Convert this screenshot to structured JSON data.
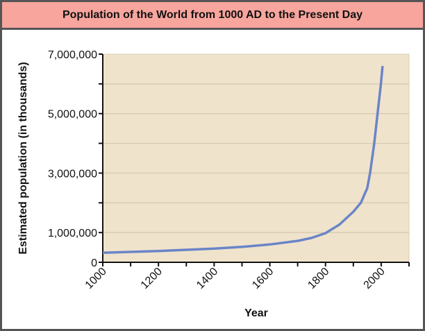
{
  "chart_data": {
    "type": "line",
    "title": "Population of the World from 1000 AD to the Present Day",
    "xlabel": "Year",
    "ylabel": "Estimated population (in thousands)",
    "xlim": [
      1000,
      2100
    ],
    "ylim": [
      0,
      7000000
    ],
    "x_ticks": [
      1000,
      1100,
      1200,
      1300,
      1400,
      1500,
      1600,
      1700,
      1800,
      1900,
      2000,
      2100
    ],
    "x_tick_labels": [
      "1000",
      "1200",
      "1400",
      "1600",
      "1800",
      "2000"
    ],
    "x_tick_label_values": [
      1000,
      1200,
      1400,
      1600,
      1800,
      2000
    ],
    "y_ticks": [
      0,
      1000000,
      2000000,
      3000000,
      4000000,
      5000000,
      6000000,
      7000000
    ],
    "y_tick_labels": [
      "0",
      "1,000,000",
      "3,000,000",
      "5,000,000",
      "7,000,000"
    ],
    "y_tick_label_values": [
      0,
      1000000,
      3000000,
      5000000,
      7000000
    ],
    "grid": "horizontal",
    "colors": {
      "line": "#6a84c8",
      "plot_bg": "#efe3cb",
      "grid": "#d9ccb4",
      "title_bg": "#f7a59d"
    },
    "series": [
      {
        "x": [
          1000,
          1100,
          1200,
          1300,
          1400,
          1500,
          1600,
          1700,
          1750,
          1800,
          1850,
          1900,
          1927,
          1950,
          1960,
          1975,
          1987,
          1999,
          2005
        ],
        "values": [
          320000,
          350000,
          380000,
          420000,
          460000,
          520000,
          600000,
          720000,
          820000,
          980000,
          1270000,
          1700000,
          2000000,
          2500000,
          3000000,
          4000000,
          5000000,
          6000000,
          6600000
        ]
      }
    ]
  }
}
